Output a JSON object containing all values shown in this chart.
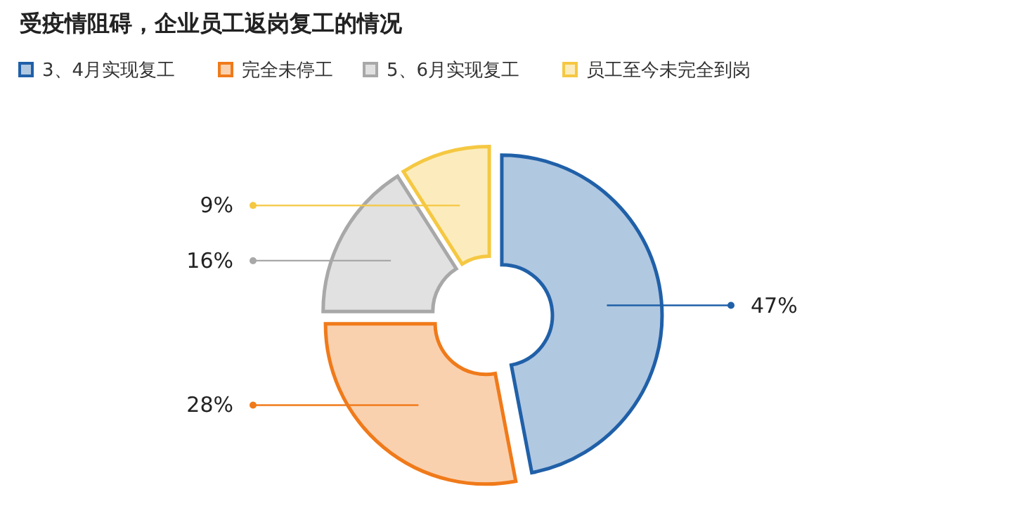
{
  "chart_data": {
    "type": "donut",
    "title": "受疫情阻碍，企业员工返岗复工的情况",
    "categories": [
      "3、4月实现复工",
      "完全未停工",
      "5、6月实现复工",
      "员工至今未完全到岗"
    ],
    "values": [
      47,
      28,
      16,
      9
    ],
    "colors": [
      "#2060a8",
      "#f07a1a",
      "#a8a8a8",
      "#f5c842"
    ],
    "value_labels": [
      "47%",
      "28%",
      "16%",
      "9%"
    ],
    "legend": "top left"
  }
}
